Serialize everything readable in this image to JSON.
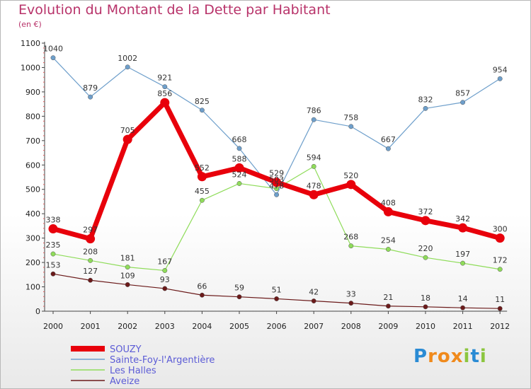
{
  "title": "Evolution du Montant de la Dette par Habitant",
  "subtitle": "(en €)",
  "brand": {
    "text": "Proxiti",
    "letters": [
      "P",
      "r",
      "o",
      "x",
      "i",
      "t",
      "i"
    ],
    "colors": [
      "#2a8bd4",
      "#f08a1c",
      "#f08a1c",
      "#f08a1c",
      "#8cc63f",
      "#2a8bd4",
      "#8cc63f"
    ]
  },
  "chart_data": {
    "type": "line",
    "title": "Evolution du Montant de la Dette par Habitant",
    "xlabel": "",
    "ylabel": "(en €)",
    "x": [
      "2000",
      "2001",
      "2002",
      "2003",
      "2004",
      "2005",
      "2006",
      "2007",
      "2008",
      "2009",
      "2010",
      "2011",
      "2012"
    ],
    "ylim": [
      0,
      1100
    ],
    "yticks": [
      0,
      100,
      200,
      300,
      400,
      500,
      600,
      700,
      800,
      900,
      1000,
      1100
    ],
    "grid": false,
    "legend": "bottom-left",
    "series": [
      {
        "name": "SOUZY",
        "color": "#e8000b",
        "values": [
          338,
          297,
          705,
          856,
          552,
          588,
          529,
          478,
          520,
          408,
          372,
          342,
          300
        ]
      },
      {
        "name": "Sainte-Foy-l'Argentière",
        "color": "#6e9fcb",
        "values": [
          1040,
          879,
          1002,
          921,
          825,
          668,
          478,
          786,
          758,
          667,
          832,
          857,
          954
        ]
      },
      {
        "name": "Les Halles",
        "color": "#8fdc5a",
        "values": [
          235,
          208,
          181,
          167,
          455,
          524,
          503,
          594,
          268,
          254,
          220,
          197,
          172
        ]
      },
      {
        "name": "Aveize",
        "color": "#6b1a1a",
        "values": [
          153,
          127,
          109,
          93,
          66,
          59,
          51,
          42,
          33,
          21,
          18,
          14,
          11
        ]
      }
    ]
  }
}
